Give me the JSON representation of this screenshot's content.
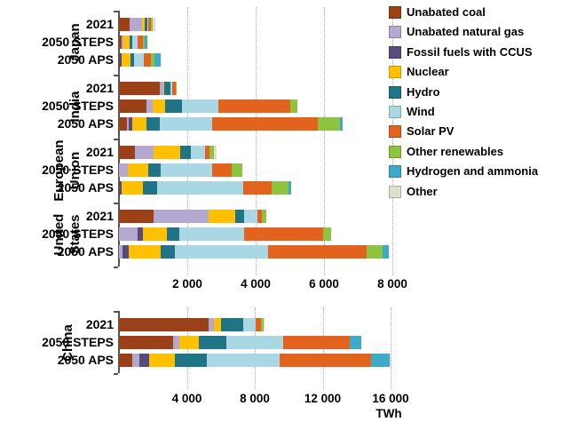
{
  "axis_unit_label": "TWh",
  "legend": {
    "items": [
      {
        "label": "Unabated coal",
        "color": "#9A4117"
      },
      {
        "label": "Unabated natural gas",
        "color": "#B4A7D0"
      },
      {
        "label": "Fossil fuels with CCUS",
        "color": "#584A7B"
      },
      {
        "label": "Nuclear",
        "color": "#FFC000"
      },
      {
        "label": "Hydro",
        "color": "#1F7585"
      },
      {
        "label": "Wind",
        "color": "#A9D8E4"
      },
      {
        "label": "Solar PV",
        "color": "#E2631E"
      },
      {
        "label": "Other renewables",
        "color": "#8CC440"
      },
      {
        "label": "Hydrogen and ammonia",
        "color": "#3FA9C8"
      },
      {
        "label": "Other",
        "color": "#E2DECE"
      }
    ]
  },
  "chart_data": {
    "type": "bar",
    "orientation": "horizontal-stacked",
    "unit": "TWh",
    "grid": "dotted-vertical",
    "legend_position": "right",
    "series_names": [
      "Unabated coal",
      "Unabated natural gas",
      "Fossil fuels with CCUS",
      "Nuclear",
      "Hydro",
      "Wind",
      "Solar PV",
      "Other renewables",
      "Hydrogen and ammonia",
      "Other"
    ],
    "series_colors": [
      "#9A4117",
      "#B4A7D0",
      "#584A7B",
      "#FFC000",
      "#1F7585",
      "#A9D8E4",
      "#E2631E",
      "#8CC440",
      "#3FA9C8",
      "#E2DECE"
    ],
    "panels": [
      {
        "name": "selected-regions",
        "xlim": [
          0,
          8000
        ],
        "xtick_values": [
          2000,
          4000,
          6000,
          8000
        ],
        "xtick_labels": [
          "2 000",
          "4 000",
          "6 000",
          "8 000"
        ],
        "xlabel": "",
        "groups": [
          {
            "region": "Japan",
            "region_lines": [
              "Japan"
            ],
            "rows": [
              {
                "label": "2021",
                "values": [
                  310,
                  360,
                  0,
                  75,
                  80,
                  25,
                  80,
                  50,
                  0,
                  80
                ]
              },
              {
                "label": "2050 STEPS",
                "values": [
                  75,
                  50,
                  0,
                  180,
                  80,
                  155,
                  155,
                  50,
                  80,
                  0
                ]
              },
              {
                "label": "2050 APS",
                "values": [
                  0,
                  0,
                  75,
                  260,
                  100,
                  285,
                  205,
                  105,
                  180,
                  0
                ]
              }
            ]
          },
          {
            "region": "India",
            "region_lines": [
              "India"
            ],
            "rows": [
              {
                "label": "2021",
                "values": [
                  1190,
                  100,
                  0,
                  45,
                  160,
                  70,
                  95,
                  35,
                  0,
                  0
                ]
              },
              {
                "label": "2050 STEPS",
                "values": [
                  800,
                  180,
                  0,
                  360,
                  515,
                  1050,
                  2120,
                  205,
                  0,
                  0
                ]
              },
              {
                "label": "2050 APS",
                "values": [
                  230,
                  50,
                  105,
                  415,
                  390,
                  1525,
                  3095,
                  670,
                  75,
                  0
                ]
              }
            ]
          },
          {
            "region": "European Union",
            "region_lines": [
              "European",
              "Union"
            ],
            "rows": [
              {
                "label": "2021",
                "values": [
                  465,
                  540,
                  0,
                  800,
                  310,
                  415,
                  130,
                  130,
                  0,
                  75
                ]
              },
              {
                "label": "2050 STEPS",
                "values": [
                  0,
                  260,
                  0,
                  595,
                  360,
                  1500,
                  595,
                  310,
                  0,
                  0
                ]
              },
              {
                "label": "2050 APS",
                "values": [
                  0,
                  0,
                  75,
                  620,
                  415,
                  2530,
                  825,
                  490,
                  75,
                  0
                ]
              }
            ]
          },
          {
            "region": "United States",
            "region_lines": [
              "United",
              "States"
            ],
            "rows": [
              {
                "label": "2021",
                "values": [
                  1005,
                  1625,
                  0,
                  775,
                  260,
                  385,
                  130,
                  130,
                  0,
                  0
                ]
              },
              {
                "label": "2050 STEPS",
                "values": [
                  0,
                  540,
                  155,
                  720,
                  360,
                  1885,
                  2325,
                  230,
                  0,
                  0
                ]
              },
              {
                "label": "2050 APS",
                "values": [
                  0,
                  105,
                  180,
                  930,
                  415,
                  2735,
                  2890,
                  465,
                  180,
                  0
                ]
              }
            ]
          }
        ]
      },
      {
        "name": "china",
        "xlim": [
          0,
          16000
        ],
        "xtick_values": [
          4000,
          8000,
          12000,
          16000
        ],
        "xtick_labels": [
          "4 000",
          "8 000",
          "12 000",
          "16 000"
        ],
        "xlabel": "TWh",
        "groups": [
          {
            "region": "China",
            "region_lines": [
              "China"
            ],
            "rows": [
              {
                "label": "2021",
                "values": [
                  5300,
                  310,
                  0,
                  415,
                  1300,
                  725,
                  310,
                  155,
                  0,
                  15
                ]
              },
              {
                "label": "2050 STEPS",
                "values": [
                  3170,
                  365,
                  0,
                  1195,
                  1610,
                  3325,
                  3940,
                  0,
                  670,
                  0
                ]
              },
              {
                "label": "2050 APS",
                "values": [
                  780,
                  415,
                  570,
                  1555,
                  1870,
                  4255,
                  5400,
                  0,
                  1090,
                  50
                ]
              }
            ]
          }
        ]
      }
    ]
  }
}
